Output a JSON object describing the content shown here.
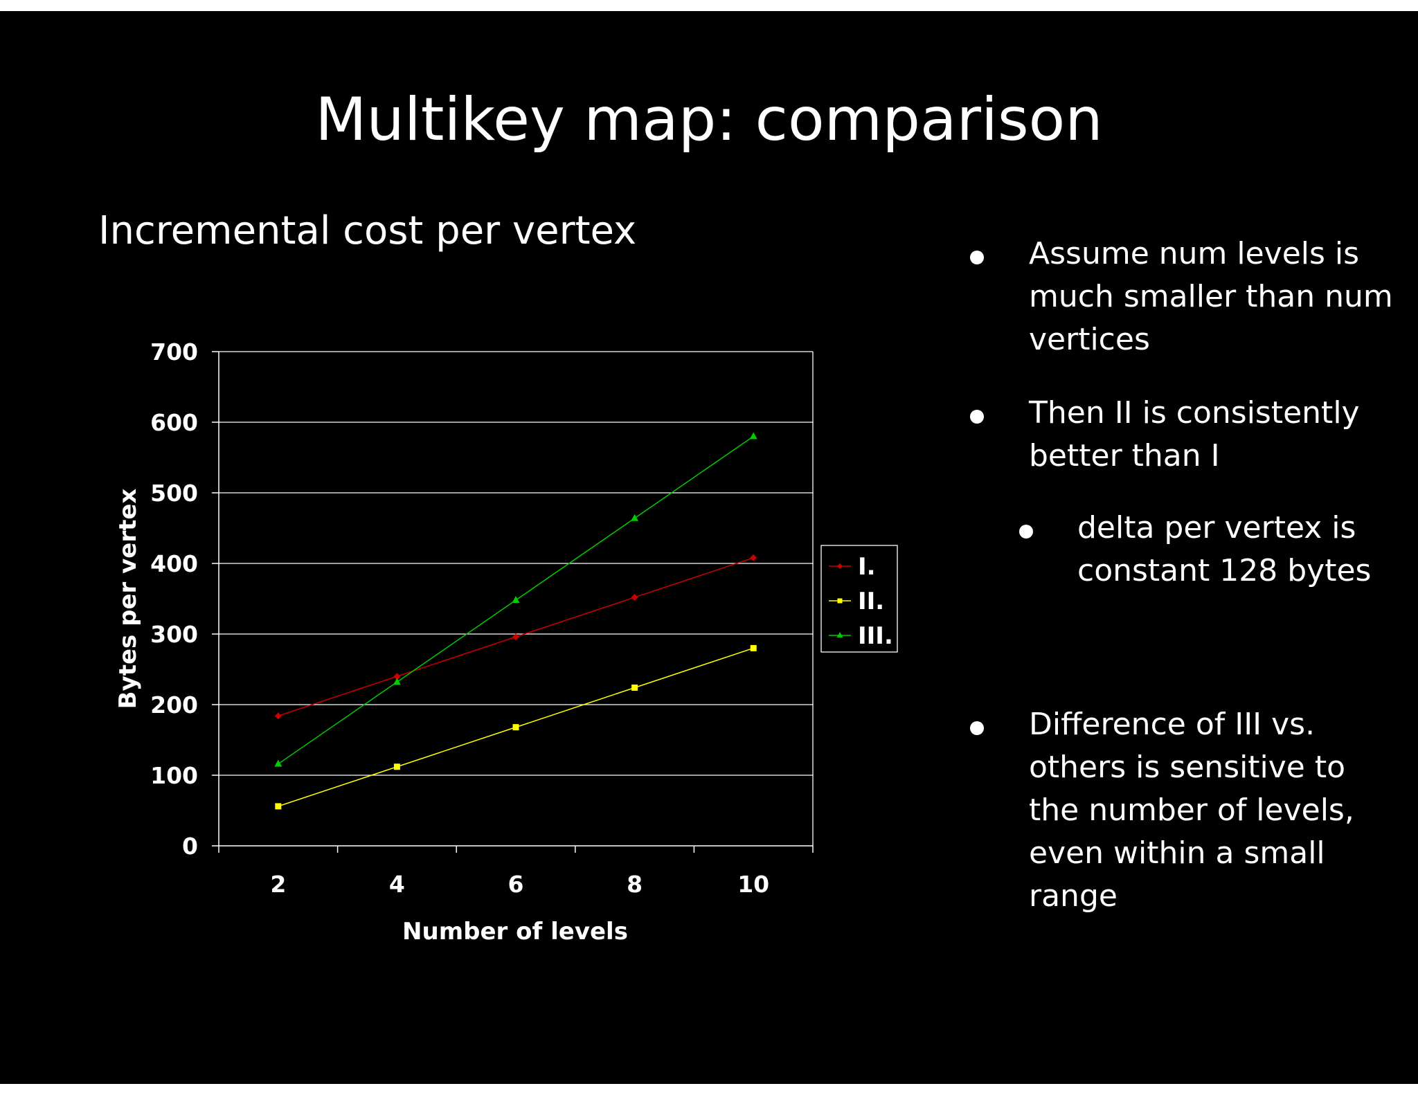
{
  "slide": {
    "title": "Multikey map: comparison",
    "subtitle": "Incremental cost per vertex",
    "background": "#000000",
    "bullets": [
      {
        "level": 1,
        "lines": [
          "Assume num levels is",
          "much smaller than num",
          "vertices"
        ]
      },
      {
        "level": 1,
        "lines": [
          "Then II is consistently",
          "better than I"
        ]
      },
      {
        "level": 2,
        "lines": [
          "delta per vertex is",
          "constant 128 bytes"
        ]
      },
      {
        "level": 1,
        "lines": [
          "Difference of III vs.",
          "others is sensitive to",
          "the number of levels,",
          "even within a small",
          "range"
        ]
      }
    ]
  },
  "chart_data": {
    "type": "line",
    "title": "",
    "xlabel": "Number of levels",
    "ylabel": "Bytes per vertex",
    "x": [
      2,
      4,
      6,
      8,
      10
    ],
    "x_tick_labels": [
      "2",
      "4",
      "6",
      "8",
      "10"
    ],
    "ylim": [
      0,
      700
    ],
    "y_ticks": [
      0,
      100,
      200,
      300,
      400,
      500,
      600,
      700
    ],
    "y_tick_labels": [
      "0",
      "100",
      "200",
      "300",
      "400",
      "500",
      "600",
      "700"
    ],
    "grid": true,
    "legend_position": "right",
    "series": [
      {
        "name": "I.",
        "color": "#cc0000",
        "marker": "diamond",
        "values": [
          184,
          240,
          296,
          352,
          408
        ]
      },
      {
        "name": "II.",
        "color": "#ffff00",
        "marker": "square",
        "values": [
          56,
          112,
          168,
          224,
          280
        ]
      },
      {
        "name": "III.",
        "color": "#00cc00",
        "marker": "triangle",
        "values": [
          116,
          232,
          348,
          464,
          580
        ]
      }
    ]
  }
}
